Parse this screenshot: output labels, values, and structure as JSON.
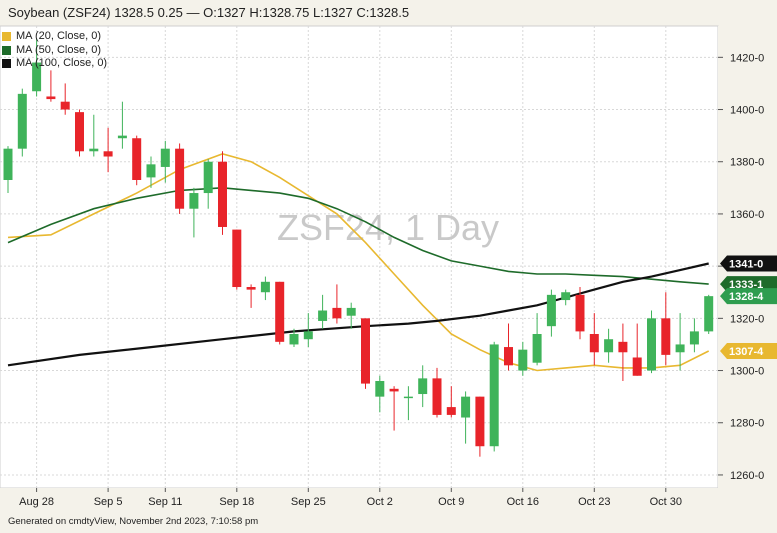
{
  "header": {
    "text": "Soybean (ZSF24) 1328.5 0.25 — O:1327 H:1328.75 L:1327 C:1328.5"
  },
  "footer": {
    "text": "Generated on cmdtyView, November 2nd 2023, 7:10:58 pm"
  },
  "chart_data": {
    "type": "candlestick",
    "watermark": "ZSF24, 1 Day",
    "ylim": [
      1255,
      1432
    ],
    "yticks": [
      1260,
      1280,
      1300,
      1320,
      1340,
      1360,
      1380,
      1400,
      1420
    ],
    "ytick_labels": [
      "1260-0",
      "1280-0",
      "1300-0",
      "1320-0",
      "1340-0",
      "1360-0",
      "1380-0",
      "1400-0",
      "1420-0"
    ],
    "xtick_labels": [
      {
        "label": "Aug 28",
        "index": 2
      },
      {
        "label": "Sep 5",
        "index": 7
      },
      {
        "label": "Sep 11",
        "index": 11
      },
      {
        "label": "Sep 18",
        "index": 16
      },
      {
        "label": "Sep 25",
        "index": 21
      },
      {
        "label": "Oct 2",
        "index": 26
      },
      {
        "label": "Oct 9",
        "index": 31
      },
      {
        "label": "Oct 16",
        "index": 36
      },
      {
        "label": "Oct 23",
        "index": 41
      },
      {
        "label": "Oct 30",
        "index": 46
      }
    ],
    "legend": [
      {
        "name": "MA (20, Close, 0)",
        "color": "#e8b830"
      },
      {
        "name": "MA (50, Close, 0)",
        "color": "#1e6b2a"
      },
      {
        "name": "MA (100, Close, 0)",
        "color": "#111111"
      }
    ],
    "price_labels": [
      {
        "text": "1341-0",
        "value": 1341,
        "bg": "#111111"
      },
      {
        "text": "1333-1",
        "value": 1333.1,
        "bg": "#1e6b2a"
      },
      {
        "text": "1328-4",
        "value": 1328.5,
        "bg": "#2e9d4f"
      },
      {
        "text": "1307-4",
        "value": 1307.5,
        "bg": "#e8b830"
      }
    ],
    "colors": {
      "up": "#3fb35a",
      "down": "#e8242a"
    },
    "candles": [
      {
        "o": 1373,
        "h": 1386,
        "l": 1368,
        "c": 1385
      },
      {
        "o": 1385,
        "h": 1408,
        "l": 1382,
        "c": 1406
      },
      {
        "o": 1407,
        "h": 1427,
        "l": 1405,
        "c": 1418
      },
      {
        "o": 1405,
        "h": 1415,
        "l": 1403,
        "c": 1404
      },
      {
        "o": 1403,
        "h": 1410,
        "l": 1398,
        "c": 1400
      },
      {
        "o": 1399,
        "h": 1400,
        "l": 1382,
        "c": 1384
      },
      {
        "o": 1384,
        "h": 1398,
        "l": 1382,
        "c": 1385
      },
      {
        "o": 1384,
        "h": 1393,
        "l": 1376,
        "c": 1382
      },
      {
        "o": 1389,
        "h": 1403,
        "l": 1385,
        "c": 1390
      },
      {
        "o": 1389,
        "h": 1390,
        "l": 1371,
        "c": 1373
      },
      {
        "o": 1374,
        "h": 1382,
        "l": 1370,
        "c": 1379
      },
      {
        "o": 1378,
        "h": 1388,
        "l": 1372,
        "c": 1385
      },
      {
        "o": 1385,
        "h": 1387,
        "l": 1360,
        "c": 1362
      },
      {
        "o": 1362,
        "h": 1370,
        "l": 1351,
        "c": 1368
      },
      {
        "o": 1368,
        "h": 1381,
        "l": 1362,
        "c": 1380
      },
      {
        "o": 1380,
        "h": 1384,
        "l": 1352,
        "c": 1355
      },
      {
        "o": 1354,
        "h": 1354,
        "l": 1331,
        "c": 1332
      },
      {
        "o": 1332,
        "h": 1333,
        "l": 1324,
        "c": 1331
      },
      {
        "o": 1330,
        "h": 1336,
        "l": 1327,
        "c": 1334
      },
      {
        "o": 1334,
        "h": 1334,
        "l": 1310,
        "c": 1311
      },
      {
        "o": 1310,
        "h": 1316,
        "l": 1309,
        "c": 1314
      },
      {
        "o": 1312,
        "h": 1322,
        "l": 1309,
        "c": 1315
      },
      {
        "o": 1319,
        "h": 1329,
        "l": 1316,
        "c": 1323
      },
      {
        "o": 1324,
        "h": 1333,
        "l": 1318,
        "c": 1320
      },
      {
        "o": 1321,
        "h": 1326,
        "l": 1316,
        "c": 1324
      },
      {
        "o": 1320,
        "h": 1320,
        "l": 1293,
        "c": 1295
      },
      {
        "o": 1290,
        "h": 1298,
        "l": 1284,
        "c": 1296
      },
      {
        "o": 1293,
        "h": 1294,
        "l": 1277,
        "c": 1292
      },
      {
        "o": 1290,
        "h": 1294,
        "l": 1281,
        "c": 1290
      },
      {
        "o": 1291,
        "h": 1302,
        "l": 1286,
        "c": 1297
      },
      {
        "o": 1297,
        "h": 1301,
        "l": 1282,
        "c": 1283
      },
      {
        "o": 1286,
        "h": 1294,
        "l": 1282,
        "c": 1283
      },
      {
        "o": 1282,
        "h": 1292,
        "l": 1272,
        "c": 1290
      },
      {
        "o": 1290,
        "h": 1290,
        "l": 1267,
        "c": 1271
      },
      {
        "o": 1271,
        "h": 1311,
        "l": 1269,
        "c": 1310
      },
      {
        "o": 1309,
        "h": 1318,
        "l": 1300,
        "c": 1302
      },
      {
        "o": 1300,
        "h": 1311,
        "l": 1298,
        "c": 1308
      },
      {
        "o": 1303,
        "h": 1322,
        "l": 1302,
        "c": 1314
      },
      {
        "o": 1317,
        "h": 1331,
        "l": 1313,
        "c": 1329
      },
      {
        "o": 1327,
        "h": 1331,
        "l": 1325,
        "c": 1330
      },
      {
        "o": 1329,
        "h": 1332,
        "l": 1312,
        "c": 1315
      },
      {
        "o": 1314,
        "h": 1322,
        "l": 1302,
        "c": 1307
      },
      {
        "o": 1307,
        "h": 1316,
        "l": 1303,
        "c": 1312
      },
      {
        "o": 1311,
        "h": 1318,
        "l": 1296,
        "c": 1307
      },
      {
        "o": 1305,
        "h": 1318,
        "l": 1298,
        "c": 1298
      },
      {
        "o": 1300,
        "h": 1323,
        "l": 1299,
        "c": 1320
      },
      {
        "o": 1320,
        "h": 1330,
        "l": 1302,
        "c": 1306
      },
      {
        "o": 1307,
        "h": 1322,
        "l": 1300,
        "c": 1310
      },
      {
        "o": 1310,
        "h": 1320,
        "l": 1307,
        "c": 1315
      },
      {
        "o": 1315,
        "h": 1329,
        "l": 1314,
        "c": 1328.5
      }
    ],
    "ma": [
      {
        "name": "MA (20, Close, 0)",
        "color": "#e8b830",
        "points": [
          [
            0,
            1351
          ],
          [
            3,
            1352
          ],
          [
            6,
            1360
          ],
          [
            9,
            1368
          ],
          [
            12,
            1377
          ],
          [
            15,
            1383
          ],
          [
            17,
            1380
          ],
          [
            19,
            1374
          ],
          [
            21,
            1367
          ],
          [
            23,
            1360
          ],
          [
            25,
            1349
          ],
          [
            27,
            1337
          ],
          [
            29,
            1325
          ],
          [
            31,
            1314
          ],
          [
            33,
            1308
          ],
          [
            35,
            1303
          ],
          [
            37,
            1300
          ],
          [
            39,
            1301
          ],
          [
            41,
            1302
          ],
          [
            43,
            1301
          ],
          [
            45,
            1301
          ],
          [
            47,
            1302
          ],
          [
            49,
            1307.5
          ]
        ]
      },
      {
        "name": "MA (50, Close, 0)",
        "color": "#1e6b2a",
        "points": [
          [
            0,
            1349
          ],
          [
            3,
            1356
          ],
          [
            6,
            1362
          ],
          [
            9,
            1366
          ],
          [
            12,
            1369
          ],
          [
            15,
            1370
          ],
          [
            17,
            1369
          ],
          [
            19,
            1368
          ],
          [
            21,
            1366
          ],
          [
            23,
            1362
          ],
          [
            25,
            1357
          ],
          [
            27,
            1351
          ],
          [
            29,
            1346
          ],
          [
            31,
            1342
          ],
          [
            33,
            1340
          ],
          [
            35,
            1338
          ],
          [
            37,
            1337
          ],
          [
            39,
            1337
          ],
          [
            41,
            1336.5
          ],
          [
            43,
            1336
          ],
          [
            45,
            1335
          ],
          [
            47,
            1334
          ],
          [
            49,
            1333.1
          ]
        ]
      },
      {
        "name": "MA (100, Close, 0)",
        "color": "#111111",
        "points": [
          [
            0,
            1302
          ],
          [
            5,
            1306
          ],
          [
            10,
            1309
          ],
          [
            15,
            1312
          ],
          [
            20,
            1315
          ],
          [
            25,
            1317
          ],
          [
            28,
            1318
          ],
          [
            30,
            1319
          ],
          [
            33,
            1321
          ],
          [
            35,
            1323
          ],
          [
            37,
            1325
          ],
          [
            39,
            1328
          ],
          [
            41,
            1331
          ],
          [
            43,
            1334
          ],
          [
            45,
            1336
          ],
          [
            47,
            1338.5
          ],
          [
            49,
            1341
          ]
        ]
      }
    ]
  }
}
